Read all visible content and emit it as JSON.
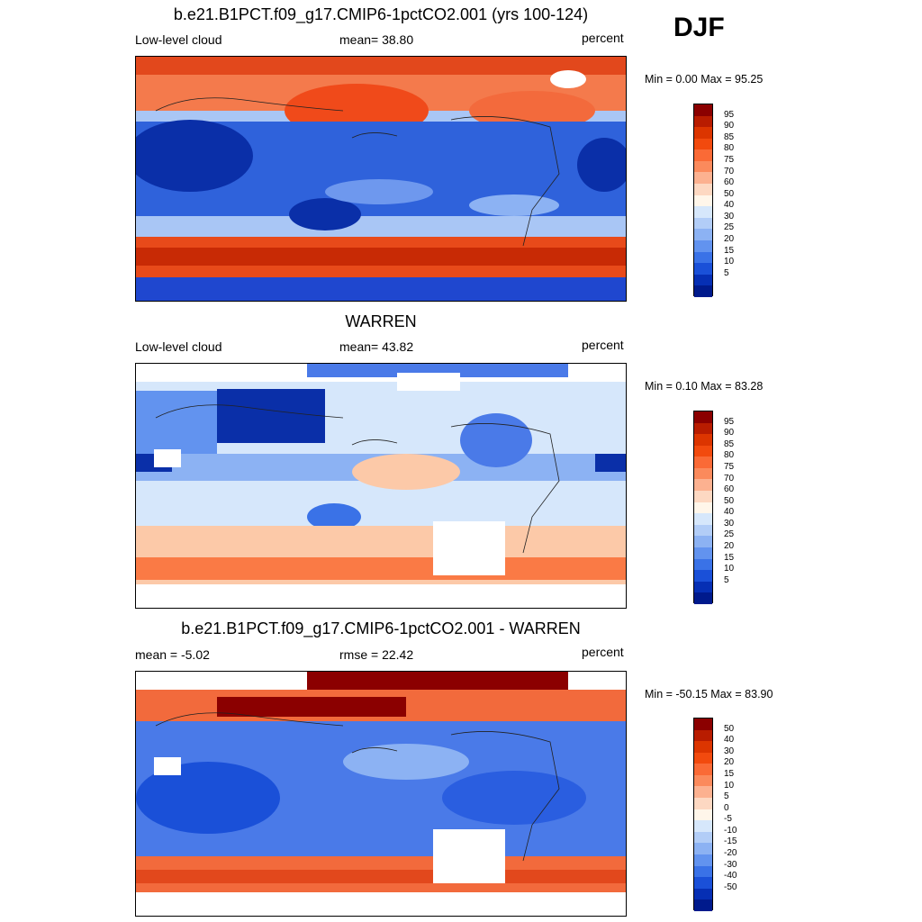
{
  "season": "DJF",
  "panels": [
    {
      "title": "b.e21.B1PCT.f09_g17.CMIP6-1pctCO2.001 (yrs 100-124)",
      "left_label": "Low-level cloud",
      "center_label": "mean=  38.80",
      "right_label": "percent",
      "minmax": "Min =   0.00 Max =  95.25",
      "colorbar": {
        "labels": [
          "95",
          "90",
          "85",
          "80",
          "75",
          "70",
          "60",
          "50",
          "40",
          "30",
          "25",
          "20",
          "15",
          "10",
          "5"
        ],
        "colors": [
          "#8b0000",
          "#b81c00",
          "#dc3500",
          "#f24a0e",
          "#fa6a36",
          "#fb8a5c",
          "#fcb190",
          "#fdd8c2",
          "#fff6ea",
          "#d6e7fb",
          "#b2cdf7",
          "#8cb2f3",
          "#6293ef",
          "#3a72e7",
          "#1a50d8",
          "#062fb4",
          "#001a8c"
        ]
      }
    },
    {
      "title": "WARREN",
      "left_label": "Low-level cloud",
      "center_label": "mean=  43.82",
      "right_label": "percent",
      "minmax": "Min =   0.10 Max =  83.28",
      "colorbar": {
        "labels": [
          "95",
          "90",
          "85",
          "80",
          "75",
          "70",
          "60",
          "50",
          "40",
          "30",
          "25",
          "20",
          "15",
          "10",
          "5"
        ],
        "colors": [
          "#8b0000",
          "#b81c00",
          "#dc3500",
          "#f24a0e",
          "#fa6a36",
          "#fb8a5c",
          "#fcb190",
          "#fdd8c2",
          "#fff6ea",
          "#d6e7fb",
          "#b2cdf7",
          "#8cb2f3",
          "#6293ef",
          "#3a72e7",
          "#1a50d8",
          "#062fb4",
          "#001a8c"
        ]
      }
    },
    {
      "title": "b.e21.B1PCT.f09_g17.CMIP6-1pctCO2.001 - WARREN",
      "left_label": "mean =  -5.02",
      "center_label": "rmse =  22.42",
      "right_label": "percent",
      "minmax": "Min = -50.15 Max =  83.90",
      "colorbar": {
        "labels": [
          "50",
          "40",
          "30",
          "20",
          "15",
          "10",
          "5",
          "0",
          "-5",
          "-10",
          "-15",
          "-20",
          "-30",
          "-40",
          "-50"
        ],
        "colors": [
          "#8b0000",
          "#b81c00",
          "#dc3500",
          "#f24a0e",
          "#fa6a36",
          "#fb8a5c",
          "#fcb190",
          "#fdd8c2",
          "#fff6ea",
          "#d6e7fb",
          "#b2cdf7",
          "#8cb2f3",
          "#6293ef",
          "#3a72e7",
          "#1a50d8",
          "#062fb4",
          "#001a8c"
        ]
      }
    }
  ]
}
